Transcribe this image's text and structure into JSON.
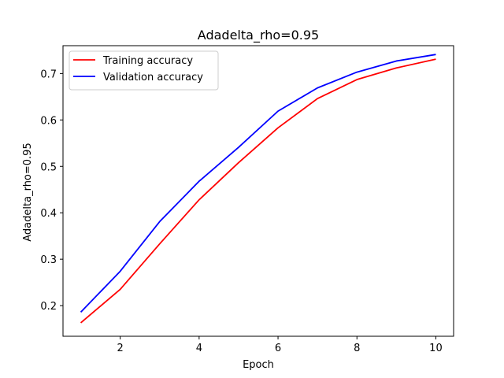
{
  "chart_data": {
    "type": "line",
    "title": "Adadelta_rho=0.95",
    "xlabel": "Epoch",
    "ylabel": "Adadelta_rho=0.95",
    "x": [
      1,
      2,
      3,
      4,
      5,
      6,
      7,
      8,
      9,
      10
    ],
    "xlim": [
      0.55,
      10.45
    ],
    "ylim": [
      0.134,
      0.76
    ],
    "xticks": [
      2,
      4,
      6,
      8,
      10
    ],
    "yticks": [
      0.2,
      0.3,
      0.4,
      0.5,
      0.6,
      0.7
    ],
    "ytick_labels": [
      "0.2",
      "0.3",
      "0.4",
      "0.5",
      "0.6",
      "0.7"
    ],
    "grid": false,
    "legend_position": "top-left",
    "series": [
      {
        "name": "Training accuracy",
        "color": "#ff0000",
        "values": [
          0.163,
          0.235,
          0.333,
          0.428,
          0.508,
          0.583,
          0.646,
          0.687,
          0.712,
          0.731
        ]
      },
      {
        "name": "Validation accuracy",
        "color": "#0000ff",
        "values": [
          0.186,
          0.274,
          0.381,
          0.468,
          0.541,
          0.619,
          0.669,
          0.703,
          0.727,
          0.741
        ]
      }
    ]
  }
}
